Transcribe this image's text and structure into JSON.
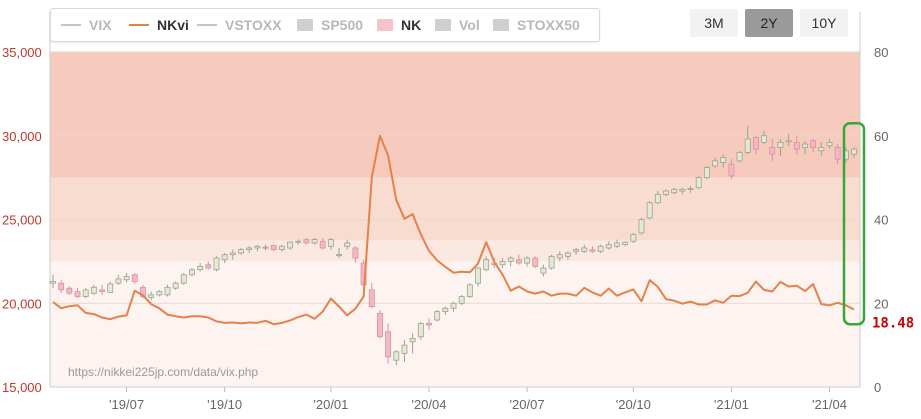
{
  "legend": {
    "items": [
      {
        "label": "VIX",
        "swatch": "line",
        "color": "#c4c4c4",
        "active": false
      },
      {
        "label": "NKvi",
        "swatch": "line",
        "color": "#e8804a",
        "active": true
      },
      {
        "label": "VSTOXX",
        "swatch": "line",
        "color": "#c4c4c4",
        "active": false
      },
      {
        "label": "SP500",
        "swatch": "rect",
        "color": "#cfcfcf",
        "active": false
      },
      {
        "label": "NK",
        "swatch": "rect",
        "color": "#f6c2cc",
        "active": true
      },
      {
        "label": "Vol",
        "swatch": "rect",
        "color": "#cfcfcf",
        "active": false
      },
      {
        "label": "STOXX50",
        "swatch": "rect",
        "color": "#cfcfcf",
        "active": false
      }
    ]
  },
  "range_buttons": {
    "b3m": "3M",
    "b2y": "2Y",
    "b10y": "10Y",
    "selected": "2Y"
  },
  "watermark": "https://nikkei225jp.com/data/vix.php",
  "last_value_label": "18.48",
  "colors": {
    "nkvi_line": "#e8804a",
    "candle_up_fill": "#e4e8d6",
    "candle_up_stroke": "#9ca48a",
    "candle_down_fill": "#f3b8c4",
    "candle_down_stroke": "#d892a2",
    "highlight": "#3aa63a",
    "last_value": "#cc0000",
    "left_axis_text": "#c0392b"
  },
  "chart_data": {
    "type": "line+candlestick",
    "x_tick_labels": [
      "'19/07",
      "'19/10",
      "'20/01",
      "'20/04",
      "'20/07",
      "'20/10",
      "'21/01",
      "'21/04"
    ],
    "x_ticks_index": [
      9,
      21,
      34,
      46,
      58,
      71,
      83,
      95
    ],
    "left_axis": {
      "label": "NK",
      "ticks": [
        15000,
        20000,
        25000,
        30000,
        35000
      ],
      "tick_labels": [
        "15,000",
        "20,000",
        "25,000",
        "30,000",
        "35,000"
      ],
      "range": [
        15000,
        35000
      ]
    },
    "right_axis": {
      "label": "NKvi",
      "ticks": [
        0,
        20,
        40,
        60,
        80
      ],
      "tick_labels": [
        "0",
        "20",
        "40",
        "60",
        "80"
      ],
      "range": [
        0,
        80
      ]
    },
    "bands": [
      {
        "from": 50,
        "to": 80,
        "color": "#f6cbbd"
      },
      {
        "from": 35,
        "to": 50,
        "color": "#f8dcd0"
      },
      {
        "from": 30,
        "to": 35,
        "color": "#fbe8e0"
      },
      {
        "from": 0,
        "to": 30,
        "color": "#fdf4f1"
      }
    ],
    "nkvi": [
      20.3,
      18.8,
      19.3,
      19.5,
      17.7,
      17.4,
      16.6,
      16.2,
      16.8,
      17.1,
      23.0,
      21.9,
      19.8,
      18.8,
      17.3,
      16.9,
      16.6,
      16.9,
      16.9,
      16.6,
      15.7,
      15.3,
      15.4,
      15.2,
      15.4,
      15.3,
      15.8,
      15.0,
      15.3,
      15.9,
      16.7,
      17.3,
      16.3,
      18.0,
      21.1,
      19.2,
      17.1,
      18.7,
      21.6,
      50.1,
      60.0,
      55.3,
      44.6,
      40.2,
      41.3,
      36.5,
      32.5,
      30.2,
      28.7,
      27.3,
      27.5,
      27.4,
      29.5,
      34.6,
      29.8,
      26.9,
      23.0,
      24.0,
      22.8,
      22.3,
      22.8,
      21.8,
      22.3,
      22.3,
      21.8,
      23.7,
      22.6,
      21.8,
      23.5,
      21.8,
      22.6,
      23.3,
      20.5,
      25.5,
      23.9,
      21.0,
      20.6,
      19.9,
      20.4,
      19.7,
      19.7,
      20.7,
      20.1,
      21.8,
      21.7,
      22.5,
      25.2,
      23.2,
      22.8,
      25.1,
      24.0,
      24.2,
      22.9,
      24.6,
      19.8,
      19.5,
      20.1,
      19.5,
      18.5
    ],
    "nk": [
      [
        21200,
        21700,
        20900,
        21300
      ],
      [
        21200,
        21400,
        20600,
        20800
      ],
      [
        20900,
        21000,
        20500,
        20600
      ],
      [
        20700,
        20900,
        20300,
        20400
      ],
      [
        20400,
        20900,
        20300,
        20800
      ],
      [
        20600,
        21100,
        20500,
        20950
      ],
      [
        20800,
        21100,
        20500,
        20700
      ],
      [
        20650,
        21300,
        20600,
        21150
      ],
      [
        21200,
        21700,
        21100,
        21450
      ],
      [
        21400,
        21800,
        21250,
        21600
      ],
      [
        21700,
        21800,
        21150,
        21300
      ],
      [
        20950,
        21100,
        20300,
        20400
      ],
      [
        20350,
        20700,
        20200,
        20500
      ],
      [
        20500,
        20800,
        20400,
        20700
      ],
      [
        20500,
        21100,
        20400,
        20950
      ],
      [
        20900,
        21300,
        20800,
        21200
      ],
      [
        21200,
        21800,
        21100,
        21700
      ],
      [
        21700,
        22100,
        21600,
        22000
      ],
      [
        22000,
        22400,
        21900,
        22200
      ],
      [
        22300,
        22500,
        22000,
        22100
      ],
      [
        22000,
        22800,
        21900,
        22700
      ],
      [
        22600,
        23000,
        22400,
        22900
      ],
      [
        22900,
        23200,
        22600,
        23000
      ],
      [
        23000,
        23300,
        22900,
        23200
      ],
      [
        23200,
        23400,
        23000,
        23300
      ],
      [
        23300,
        23500,
        23100,
        23400
      ],
      [
        23300,
        23500,
        23150,
        23350
      ],
      [
        23450,
        23500,
        23100,
        23200
      ],
      [
        23200,
        23500,
        23100,
        23400
      ],
      [
        23300,
        23700,
        23200,
        23650
      ],
      [
        23650,
        23800,
        23500,
        23700
      ],
      [
        23800,
        23900,
        23500,
        23600
      ],
      [
        23600,
        23900,
        23500,
        23800
      ],
      [
        23700,
        23900,
        23200,
        23300
      ],
      [
        23400,
        23900,
        23200,
        23800
      ],
      [
        22900,
        23300,
        22700,
        22900
      ],
      [
        23400,
        23800,
        23200,
        23600
      ],
      [
        23300,
        23400,
        22400,
        22700
      ],
      [
        22400,
        22600,
        21000,
        21100
      ],
      [
        20800,
        21200,
        19700,
        19800
      ],
      [
        19400,
        19600,
        17900,
        18000
      ],
      [
        18300,
        18800,
        16400,
        16800
      ],
      [
        16600,
        17200,
        16300,
        17100
      ],
      [
        17000,
        17800,
        16500,
        17500
      ],
      [
        17700,
        18200,
        17000,
        17900
      ],
      [
        18000,
        18900,
        17800,
        18800
      ],
      [
        18800,
        19100,
        18400,
        18700
      ],
      [
        19000,
        19600,
        18900,
        19500
      ],
      [
        19500,
        19800,
        19300,
        19700
      ],
      [
        19700,
        20100,
        19500,
        20000
      ],
      [
        20000,
        20500,
        19900,
        20400
      ],
      [
        20400,
        21200,
        20300,
        21100
      ],
      [
        21200,
        22200,
        21000,
        22100
      ],
      [
        22000,
        22800,
        21900,
        22600
      ],
      [
        22400,
        22700,
        22100,
        22300
      ],
      [
        22300,
        22700,
        22100,
        22500
      ],
      [
        22500,
        22800,
        22200,
        22700
      ],
      [
        22600,
        22900,
        22300,
        22400
      ],
      [
        22400,
        22800,
        22200,
        22700
      ],
      [
        22700,
        22800,
        22100,
        22200
      ],
      [
        21800,
        22300,
        21600,
        22100
      ],
      [
        22100,
        22900,
        22000,
        22800
      ],
      [
        22700,
        23100,
        22500,
        22900
      ],
      [
        22800,
        23100,
        22600,
        23000
      ],
      [
        23100,
        23300,
        22900,
        23200
      ],
      [
        23100,
        23500,
        23000,
        23300
      ],
      [
        23200,
        23400,
        23000,
        23100
      ],
      [
        23100,
        23500,
        23000,
        23400
      ],
      [
        23300,
        23700,
        23200,
        23500
      ],
      [
        23400,
        23800,
        23300,
        23600
      ],
      [
        23500,
        23700,
        23400,
        23650
      ],
      [
        23700,
        24200,
        23600,
        24100
      ],
      [
        24200,
        25100,
        24100,
        25000
      ],
      [
        25100,
        26100,
        25000,
        26000
      ],
      [
        26000,
        26700,
        25900,
        26500
      ],
      [
        26500,
        26800,
        26400,
        26700
      ],
      [
        26600,
        26900,
        26500,
        26800
      ],
      [
        26700,
        26900,
        26500,
        26800
      ],
      [
        26800,
        27000,
        26600,
        26850
      ],
      [
        26900,
        27600,
        26800,
        27500
      ],
      [
        27500,
        28200,
        27400,
        28100
      ],
      [
        28200,
        28700,
        28100,
        28500
      ],
      [
        28400,
        28900,
        28100,
        28700
      ],
      [
        28300,
        28600,
        27400,
        27600
      ],
      [
        28500,
        29100,
        28400,
        29000
      ],
      [
        29000,
        30600,
        28900,
        29800
      ],
      [
        29900,
        30000,
        28900,
        29200
      ],
      [
        29600,
        30300,
        29500,
        30000
      ],
      [
        29300,
        29800,
        28500,
        28900
      ],
      [
        29300,
        29800,
        28800,
        29600
      ],
      [
        29700,
        30100,
        29400,
        29700
      ],
      [
        29600,
        30000,
        28900,
        29200
      ],
      [
        29300,
        29700,
        28900,
        29500
      ],
      [
        29700,
        29800,
        29000,
        29300
      ],
      [
        29100,
        29600,
        28800,
        29300
      ],
      [
        29400,
        29800,
        29200,
        29600
      ],
      [
        29300,
        29500,
        28300,
        28600
      ],
      [
        28600,
        29300,
        28400,
        29100
      ],
      [
        28900,
        29300,
        28700,
        29200
      ]
    ],
    "last_value": 18.48
  }
}
